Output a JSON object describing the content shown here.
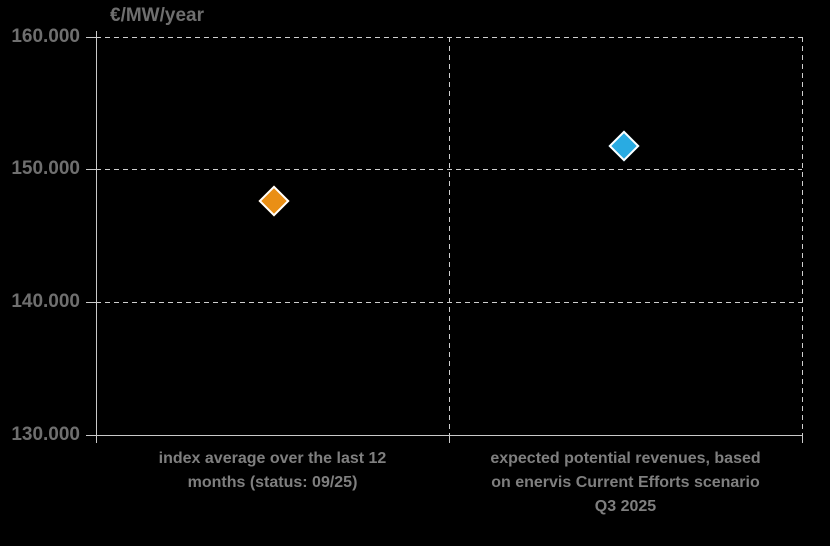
{
  "chart": {
    "axis_title": "€/MW/year",
    "y_tick_labels": [
      "160.000",
      "150.000",
      "140.000",
      "130.000"
    ],
    "category_labels": [
      {
        "lines": [
          "index average over the last 12",
          "months (status: 09/25)"
        ]
      },
      {
        "lines": [
          "expected potential revenues, based",
          "on enervis Current Efforts scenario",
          "Q3 2025"
        ]
      }
    ],
    "colors": {
      "orange_marker": "#EA8F15",
      "blue_marker": "#29ABE2",
      "grid": "#CFCFCF",
      "text_gray": "#7F7F7F",
      "background": "#000000"
    }
  },
  "chart_data": {
    "type": "scatter",
    "title": "",
    "xlabel": "",
    "ylabel": "€/MW/year",
    "ylim": [
      130000,
      160000
    ],
    "y_tick_values": [
      130000,
      140000,
      150000,
      160000
    ],
    "grid": "dashed horizontal gridlines every 10.000, dashed vertical category separators, solid left and bottom axes",
    "legend_position": "none",
    "categories": [
      "index average over the last 12 months (status: 09/25)",
      "expected potential revenues, based on enervis Current Efforts scenario Q3 2025"
    ],
    "series": [
      {
        "name": "index average over the last 12 months (status: 09/25)",
        "marker": "diamond",
        "color": "#EA8F15",
        "values": [
          147600,
          null
        ]
      },
      {
        "name": "expected potential revenues, based on enervis Current Efforts scenario Q3 2025",
        "marker": "diamond",
        "color": "#29ABE2",
        "values": [
          null,
          151700
        ]
      }
    ]
  }
}
